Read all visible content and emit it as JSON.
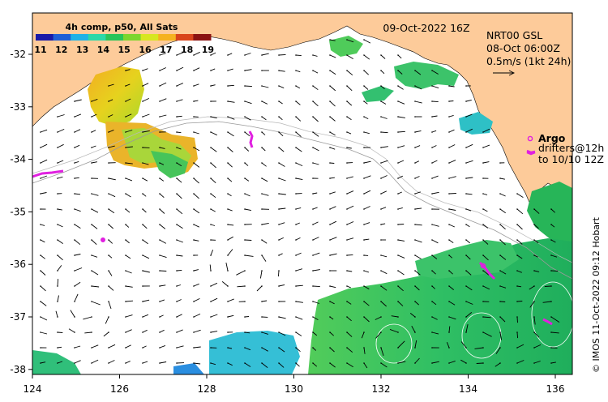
{
  "map": {
    "timestamp": "09-Oct-2022 16Z",
    "sst_legend": {
      "title": "4h comp, p50, All Sats",
      "ticks": [
        "11",
        "12",
        "13",
        "14",
        "15",
        "16",
        "17",
        "18",
        "19"
      ],
      "colors": [
        "#1a1aa8",
        "#1f5fd6",
        "#1fb2e6",
        "#2ad8a8",
        "#29c459",
        "#7cd62e",
        "#d7e61f",
        "#f5b21f",
        "#d9441b",
        "#8b1212"
      ]
    },
    "current_info": {
      "source": "NRT00 GSL",
      "time": "08-Oct 06:00Z",
      "scale": "0.5m/s (1kt 24h)"
    },
    "argo": {
      "label": "Argo",
      "drifters_line1": "drifters@12h",
      "drifters_line2": "to 10/10 12Z"
    },
    "credit": "© IMOS 11-Oct-2022 09:12 Hobart",
    "lon_ticks": [
      "124",
      "126",
      "128",
      "130",
      "132",
      "134",
      "136"
    ],
    "lat_ticks": [
      "-32",
      "-33",
      "-34",
      "-35",
      "-36",
      "-37",
      "-38"
    ],
    "colors": {
      "land": "#fdcb9a",
      "ocean": "#ffffff",
      "argo": "#e020e0",
      "bathymetry": "#9a9a9a"
    }
  }
}
